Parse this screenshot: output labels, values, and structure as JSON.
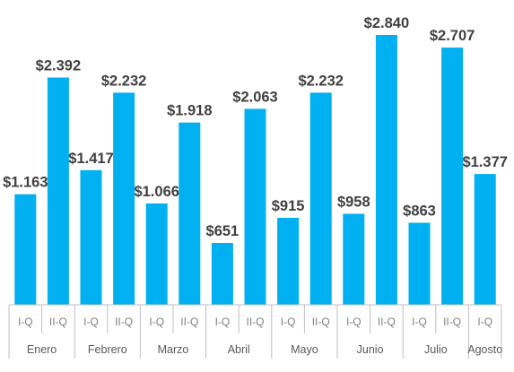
{
  "chart_data": {
    "type": "bar",
    "bar_color": "#00b0f0",
    "axis_color": "#bfbfbf",
    "grid": false,
    "ylim": [
      0,
      2840
    ],
    "groups": [
      {
        "month": "Enero",
        "bars": [
          {
            "sub": "I-Q",
            "value": 1163,
            "label": "$1.163"
          },
          {
            "sub": "II-Q",
            "value": 2392,
            "label": "$2.392"
          }
        ]
      },
      {
        "month": "Febrero",
        "bars": [
          {
            "sub": "I-Q",
            "value": 1417,
            "label": "$1.417"
          },
          {
            "sub": "II-Q",
            "value": 2232,
            "label": "$2.232"
          }
        ]
      },
      {
        "month": "Marzo",
        "bars": [
          {
            "sub": "I-Q",
            "value": 1066,
            "label": "$1.066"
          },
          {
            "sub": "II-Q",
            "value": 1918,
            "label": "$1.918"
          }
        ]
      },
      {
        "month": "Abril",
        "bars": [
          {
            "sub": "I-Q",
            "value": 651,
            "label": "$651"
          },
          {
            "sub": "II-Q",
            "value": 2063,
            "label": "$2.063"
          }
        ]
      },
      {
        "month": "Mayo",
        "bars": [
          {
            "sub": "I-Q",
            "value": 915,
            "label": "$915"
          },
          {
            "sub": "II-Q",
            "value": 2232,
            "label": "$2.232"
          }
        ]
      },
      {
        "month": "Junio",
        "bars": [
          {
            "sub": "I-Q",
            "value": 958,
            "label": "$958"
          },
          {
            "sub": "II-Q",
            "value": 2840,
            "label": "$2.840"
          }
        ]
      },
      {
        "month": "Julio",
        "bars": [
          {
            "sub": "I-Q",
            "value": 863,
            "label": "$863"
          },
          {
            "sub": "II-Q",
            "value": 2707,
            "label": "$2.707"
          }
        ]
      },
      {
        "month": "Agosto",
        "bars": [
          {
            "sub": "I-Q",
            "value": 1377,
            "label": "$1.377"
          }
        ]
      }
    ]
  }
}
